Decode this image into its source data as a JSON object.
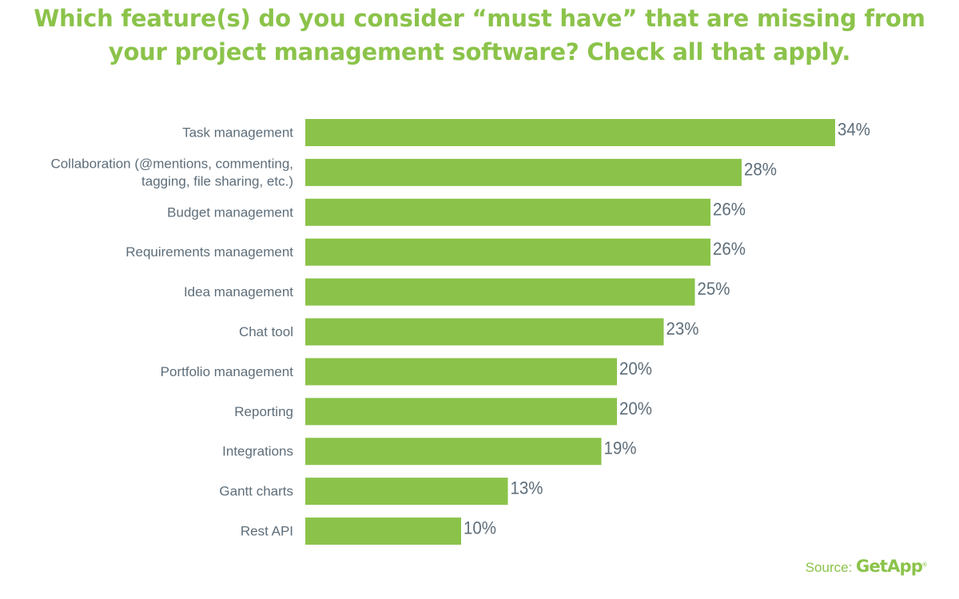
{
  "title_lines": [
    "Which feature(s) do you consider “must have” that are missing from",
    "your project management software? Check all that apply."
  ],
  "source": {
    "prefix": "Source:",
    "brand": "GetApp",
    "registered": "®"
  },
  "colors": {
    "bar": "#8bc34a",
    "title": "#8bc34a",
    "label": "#5e6e7a"
  },
  "chart_data": {
    "type": "bar",
    "orientation": "horizontal",
    "title": "Which feature(s) do you consider “must have” that are missing from your project management software? Check all that apply.",
    "categories": [
      [
        "Task management"
      ],
      [
        "Collaboration (@mentions, commenting,",
        "tagging, file sharing, etc.)"
      ],
      [
        "Budget management"
      ],
      [
        "Requirements management"
      ],
      [
        "Idea management"
      ],
      [
        "Chat tool"
      ],
      [
        "Portfolio management"
      ],
      [
        "Reporting"
      ],
      [
        "Integrations"
      ],
      [
        "Gantt charts"
      ],
      [
        "Rest API"
      ]
    ],
    "values": [
      34,
      28,
      26,
      26,
      25,
      23,
      20,
      20,
      19,
      13,
      10
    ],
    "value_labels": [
      "34%",
      "28%",
      "26%",
      "26%",
      "25%",
      "23%",
      "20%",
      "20%",
      "19%",
      "13%",
      "10%"
    ],
    "unit": "%",
    "xlim": [
      0,
      34
    ],
    "grid": false,
    "legend": "none"
  }
}
